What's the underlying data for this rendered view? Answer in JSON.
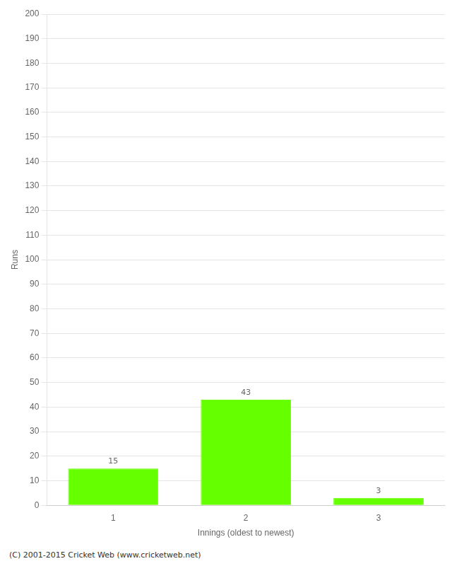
{
  "chart_data": {
    "type": "bar",
    "categories": [
      "1",
      "2",
      "3"
    ],
    "values": [
      15,
      43,
      3
    ],
    "color": "#66ff00",
    "xlabel": "Innings (oldest to newest)",
    "ylabel": "Runs",
    "ylim": [
      0,
      200
    ],
    "yticks": [
      0,
      10,
      20,
      30,
      40,
      50,
      60,
      70,
      80,
      90,
      100,
      110,
      120,
      130,
      140,
      150,
      160,
      170,
      180,
      190,
      200
    ],
    "grid": true,
    "data_labels": true,
    "annotations": [
      "(C) 2001-2015 Cricket Web (www.cricketweb.net)"
    ]
  }
}
